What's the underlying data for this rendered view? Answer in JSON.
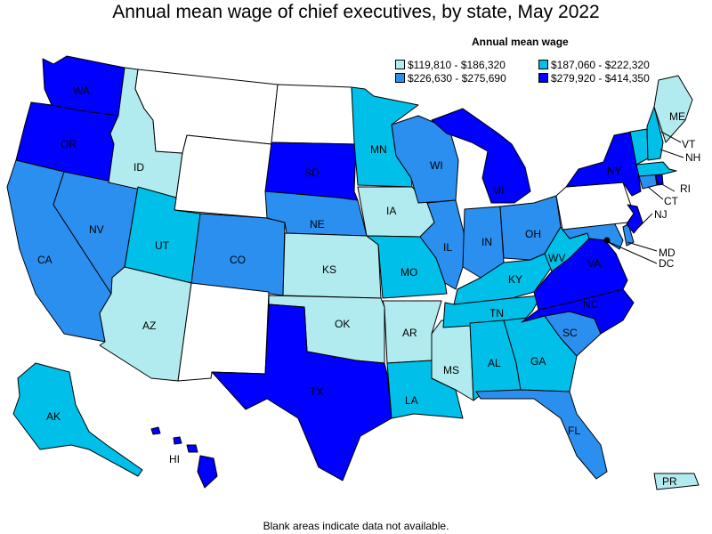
{
  "title": "Annual mean wage of chief executives, by state, May 2022",
  "legend": {
    "title": "Annual mean wage",
    "items": [
      {
        "label": "$119,810 - $186,320",
        "color": "#b2ebef"
      },
      {
        "label": "$187,060 - $222,320",
        "color": "#00bfe8"
      },
      {
        "label": "$226,630 - $275,690",
        "color": "#2b8ff0"
      },
      {
        "label": "$279,920 - $414,350",
        "color": "#0000ff"
      }
    ]
  },
  "footnote": "Blank areas indicate data not available.",
  "states": {
    "WA": {
      "label": "WA",
      "range": 4
    },
    "OR": {
      "label": "OR",
      "range": 4
    },
    "CA": {
      "label": "CA",
      "range": 3
    },
    "NV": {
      "label": "NV",
      "range": 3
    },
    "ID": {
      "label": "ID",
      "range": 1
    },
    "MT": {
      "label": "",
      "range": 0
    },
    "WY": {
      "label": "",
      "range": 0
    },
    "UT": {
      "label": "UT",
      "range": 2
    },
    "AZ": {
      "label": "AZ",
      "range": 1
    },
    "CO": {
      "label": "CO",
      "range": 3
    },
    "NM": {
      "label": "",
      "range": 0
    },
    "ND": {
      "label": "",
      "range": 0
    },
    "SD": {
      "label": "SD",
      "range": 4
    },
    "NE": {
      "label": "NE",
      "range": 3
    },
    "KS": {
      "label": "KS",
      "range": 1
    },
    "OK": {
      "label": "OK",
      "range": 1
    },
    "TX": {
      "label": "TX",
      "range": 4
    },
    "MN": {
      "label": "MN",
      "range": 2
    },
    "IA": {
      "label": "IA",
      "range": 1
    },
    "MO": {
      "label": "MO",
      "range": 2
    },
    "AR": {
      "label": "AR",
      "range": 1
    },
    "LA": {
      "label": "LA",
      "range": 2
    },
    "WI": {
      "label": "WI",
      "range": 3
    },
    "IL": {
      "label": "IL",
      "range": 3
    },
    "MS": {
      "label": "MS",
      "range": 1
    },
    "MI": {
      "label": "MI",
      "range": 4
    },
    "IN": {
      "label": "IN",
      "range": 3
    },
    "KY": {
      "label": "KY",
      "range": 2
    },
    "TN": {
      "label": "TN",
      "range": 2
    },
    "AL": {
      "label": "AL",
      "range": 2
    },
    "OH": {
      "label": "OH",
      "range": 3
    },
    "WV": {
      "label": "WV",
      "range": 2
    },
    "GA": {
      "label": "GA",
      "range": 2
    },
    "FL": {
      "label": "FL",
      "range": 3
    },
    "SC": {
      "label": "SC",
      "range": 3
    },
    "NC": {
      "label": "NC",
      "range": 4
    },
    "VA": {
      "label": "VA",
      "range": 4
    },
    "MD": {
      "label": "MD",
      "range": 3
    },
    "DC": {
      "label": "DC",
      "range": 4
    },
    "DE": {
      "label": "",
      "range": 3
    },
    "PA": {
      "label": "",
      "range": 0
    },
    "NJ": {
      "label": "NJ",
      "range": 4
    },
    "NY": {
      "label": "NY",
      "range": 4
    },
    "CT": {
      "label": "CT",
      "range": 3
    },
    "RI": {
      "label": "RI",
      "range": 4
    },
    "MA": {
      "label": "",
      "range": 2
    },
    "VT": {
      "label": "VT",
      "range": 2
    },
    "NH": {
      "label": "NH",
      "range": 2
    },
    "ME": {
      "label": "ME",
      "range": 1
    },
    "AK": {
      "label": "AK",
      "range": 2
    },
    "HI": {
      "label": "HI",
      "range": 4
    },
    "PR": {
      "label": "PR",
      "range": 1
    }
  }
}
